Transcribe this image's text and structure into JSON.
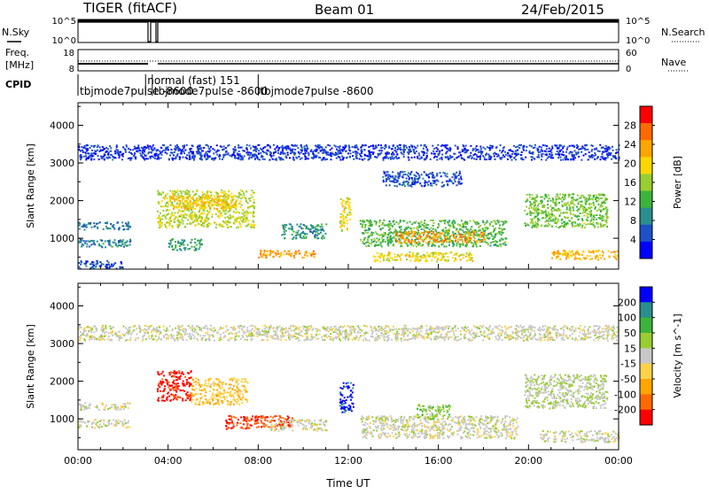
{
  "header": {
    "station": "TIGER (fitACF)",
    "beam": "Beam 01",
    "date": "24/Feb/2015"
  },
  "sky_panel": {
    "left_label": "N.Sky",
    "right_label": "N.Search",
    "left_ticks": [
      "10^5",
      "10^0"
    ],
    "right_ticks": [
      "10^5",
      "10^0"
    ]
  },
  "freq_panel": {
    "left_label_top": "Freq.",
    "left_label_bottom": "[MHz]",
    "right_label": "Nave",
    "left_ticks": [
      "18",
      "8"
    ],
    "right_ticks": [
      "60",
      "0"
    ]
  },
  "cpid": {
    "label": "CPID",
    "segments": [
      {
        "text": "tbjmode7pulse -8600",
        "row": "lower",
        "start_hr": 0.0
      },
      {
        "text": "normal (fast) 151",
        "row": "upper",
        "start_hr": 3.0
      },
      {
        "text": "tbjmode7pulse -8600",
        "row": "lower",
        "start_hr": 3.3
      },
      {
        "text": "tbjmode7pulse -8600",
        "row": "lower",
        "start_hr": 8.0
      }
    ]
  },
  "x_axis": {
    "label": "Time UT",
    "ticks": [
      "00:00",
      "04:00",
      "08:00",
      "12:00",
      "16:00",
      "20:00",
      "00:00"
    ]
  },
  "chart_data": [
    {
      "type": "heatmap",
      "title": "",
      "xlabel": "Time UT",
      "ylabel": "Slant Range [km]",
      "xlim_hr": [
        0,
        24
      ],
      "ylim": [
        180,
        4600
      ],
      "yticks": [
        "1000",
        "2000",
        "3000",
        "4000"
      ],
      "colorbar": {
        "label": "Power [dB]",
        "ticks": [
          "28",
          "24",
          "20",
          "16",
          "12",
          "8",
          "4"
        ],
        "range": [
          0,
          30
        ],
        "colors": [
          "#0000ff",
          "#1e50c8",
          "#2a8e8e",
          "#3cb43c",
          "#9acd32",
          "#ffd700",
          "#ffa500",
          "#ff6a00",
          "#ff0000"
        ]
      },
      "regions": [
        {
          "t0": 0.0,
          "t1": 2.3,
          "r0": 780,
          "r1": 1000,
          "v": 8
        },
        {
          "t0": 0.0,
          "t1": 2.3,
          "r0": 1250,
          "r1": 1450,
          "v": 7
        },
        {
          "t0": 0.0,
          "t1": 2.0,
          "r0": 200,
          "r1": 420,
          "v": 5
        },
        {
          "t0": 3.5,
          "t1": 7.8,
          "r0": 1300,
          "r1": 2300,
          "v": 16
        },
        {
          "t0": 4.0,
          "t1": 7.0,
          "r0": 1800,
          "r1": 2150,
          "v": 20
        },
        {
          "t0": 4.0,
          "t1": 5.5,
          "r0": 700,
          "r1": 1000,
          "v": 10
        },
        {
          "t0": 8.0,
          "t1": 10.5,
          "r0": 500,
          "r1": 700,
          "v": 22
        },
        {
          "t0": 9.0,
          "t1": 11.0,
          "r0": 1000,
          "r1": 1400,
          "v": 9
        },
        {
          "t0": 11.6,
          "t1": 12.1,
          "r0": 1200,
          "r1": 2100,
          "v": 18
        },
        {
          "t0": 12.5,
          "t1": 19.0,
          "r0": 800,
          "r1": 1500,
          "v": 12
        },
        {
          "t0": 14.0,
          "t1": 18.0,
          "r0": 900,
          "r1": 1200,
          "v": 22
        },
        {
          "t0": 13.0,
          "t1": 17.5,
          "r0": 400,
          "r1": 650,
          "v": 18
        },
        {
          "t0": 13.5,
          "t1": 17.0,
          "r0": 2400,
          "r1": 2800,
          "v": 5
        },
        {
          "t0": 19.8,
          "t1": 23.5,
          "r0": 1300,
          "r1": 2200,
          "v": 14
        },
        {
          "t0": 21.0,
          "t1": 24.0,
          "r0": 450,
          "r1": 700,
          "v": 21
        },
        {
          "t0": 0.0,
          "t1": 24.0,
          "r0": 3100,
          "r1": 3500,
          "v": 4
        }
      ]
    },
    {
      "type": "heatmap",
      "title": "",
      "xlabel": "Time UT",
      "ylabel": "Slant Range [km]",
      "xlim_hr": [
        0,
        24
      ],
      "ylim": [
        180,
        4600
      ],
      "yticks": [
        "1000",
        "2000",
        "3000",
        "4000"
      ],
      "colorbar": {
        "label": "Velocity [m s^-1]",
        "ticks": [
          "200",
          "100",
          "50",
          "15",
          "-15",
          "-50",
          "-100",
          "-200"
        ],
        "range": [
          -250,
          250
        ],
        "colors": [
          "#ff0000",
          "#ff6a00",
          "#ffa500",
          "#ffd24a",
          "#c8c8c8",
          "#9acd32",
          "#3cb43c",
          "#2a8e8e",
          "#0000ff"
        ]
      },
      "regions": [
        {
          "t0": 0.0,
          "t1": 2.3,
          "r0": 780,
          "r1": 1000,
          "v": 0
        },
        {
          "t0": 0.0,
          "t1": 2.3,
          "r0": 1250,
          "r1": 1450,
          "v": 0
        },
        {
          "t0": 3.5,
          "t1": 5.0,
          "r0": 1500,
          "r1": 2300,
          "v": -220
        },
        {
          "t0": 5.0,
          "t1": 7.5,
          "r0": 1400,
          "r1": 2100,
          "v": -70
        },
        {
          "t0": 6.5,
          "t1": 9.5,
          "r0": 750,
          "r1": 1100,
          "v": -200
        },
        {
          "t0": 8.5,
          "t1": 11.0,
          "r0": 700,
          "r1": 1000,
          "v": 0
        },
        {
          "t0": 11.6,
          "t1": 12.2,
          "r0": 1200,
          "r1": 2000,
          "v": 220
        },
        {
          "t0": 12.5,
          "t1": 19.5,
          "r0": 500,
          "r1": 1100,
          "v": 0
        },
        {
          "t0": 15.0,
          "t1": 16.5,
          "r0": 1000,
          "r1": 1400,
          "v": 60
        },
        {
          "t0": 19.8,
          "t1": 23.5,
          "r0": 1300,
          "r1": 2200,
          "v": 30
        },
        {
          "t0": 20.5,
          "t1": 24.0,
          "r0": 400,
          "r1": 700,
          "v": 0
        },
        {
          "t0": 0.0,
          "t1": 24.0,
          "r0": 3100,
          "r1": 3500,
          "v": 0
        }
      ]
    }
  ]
}
